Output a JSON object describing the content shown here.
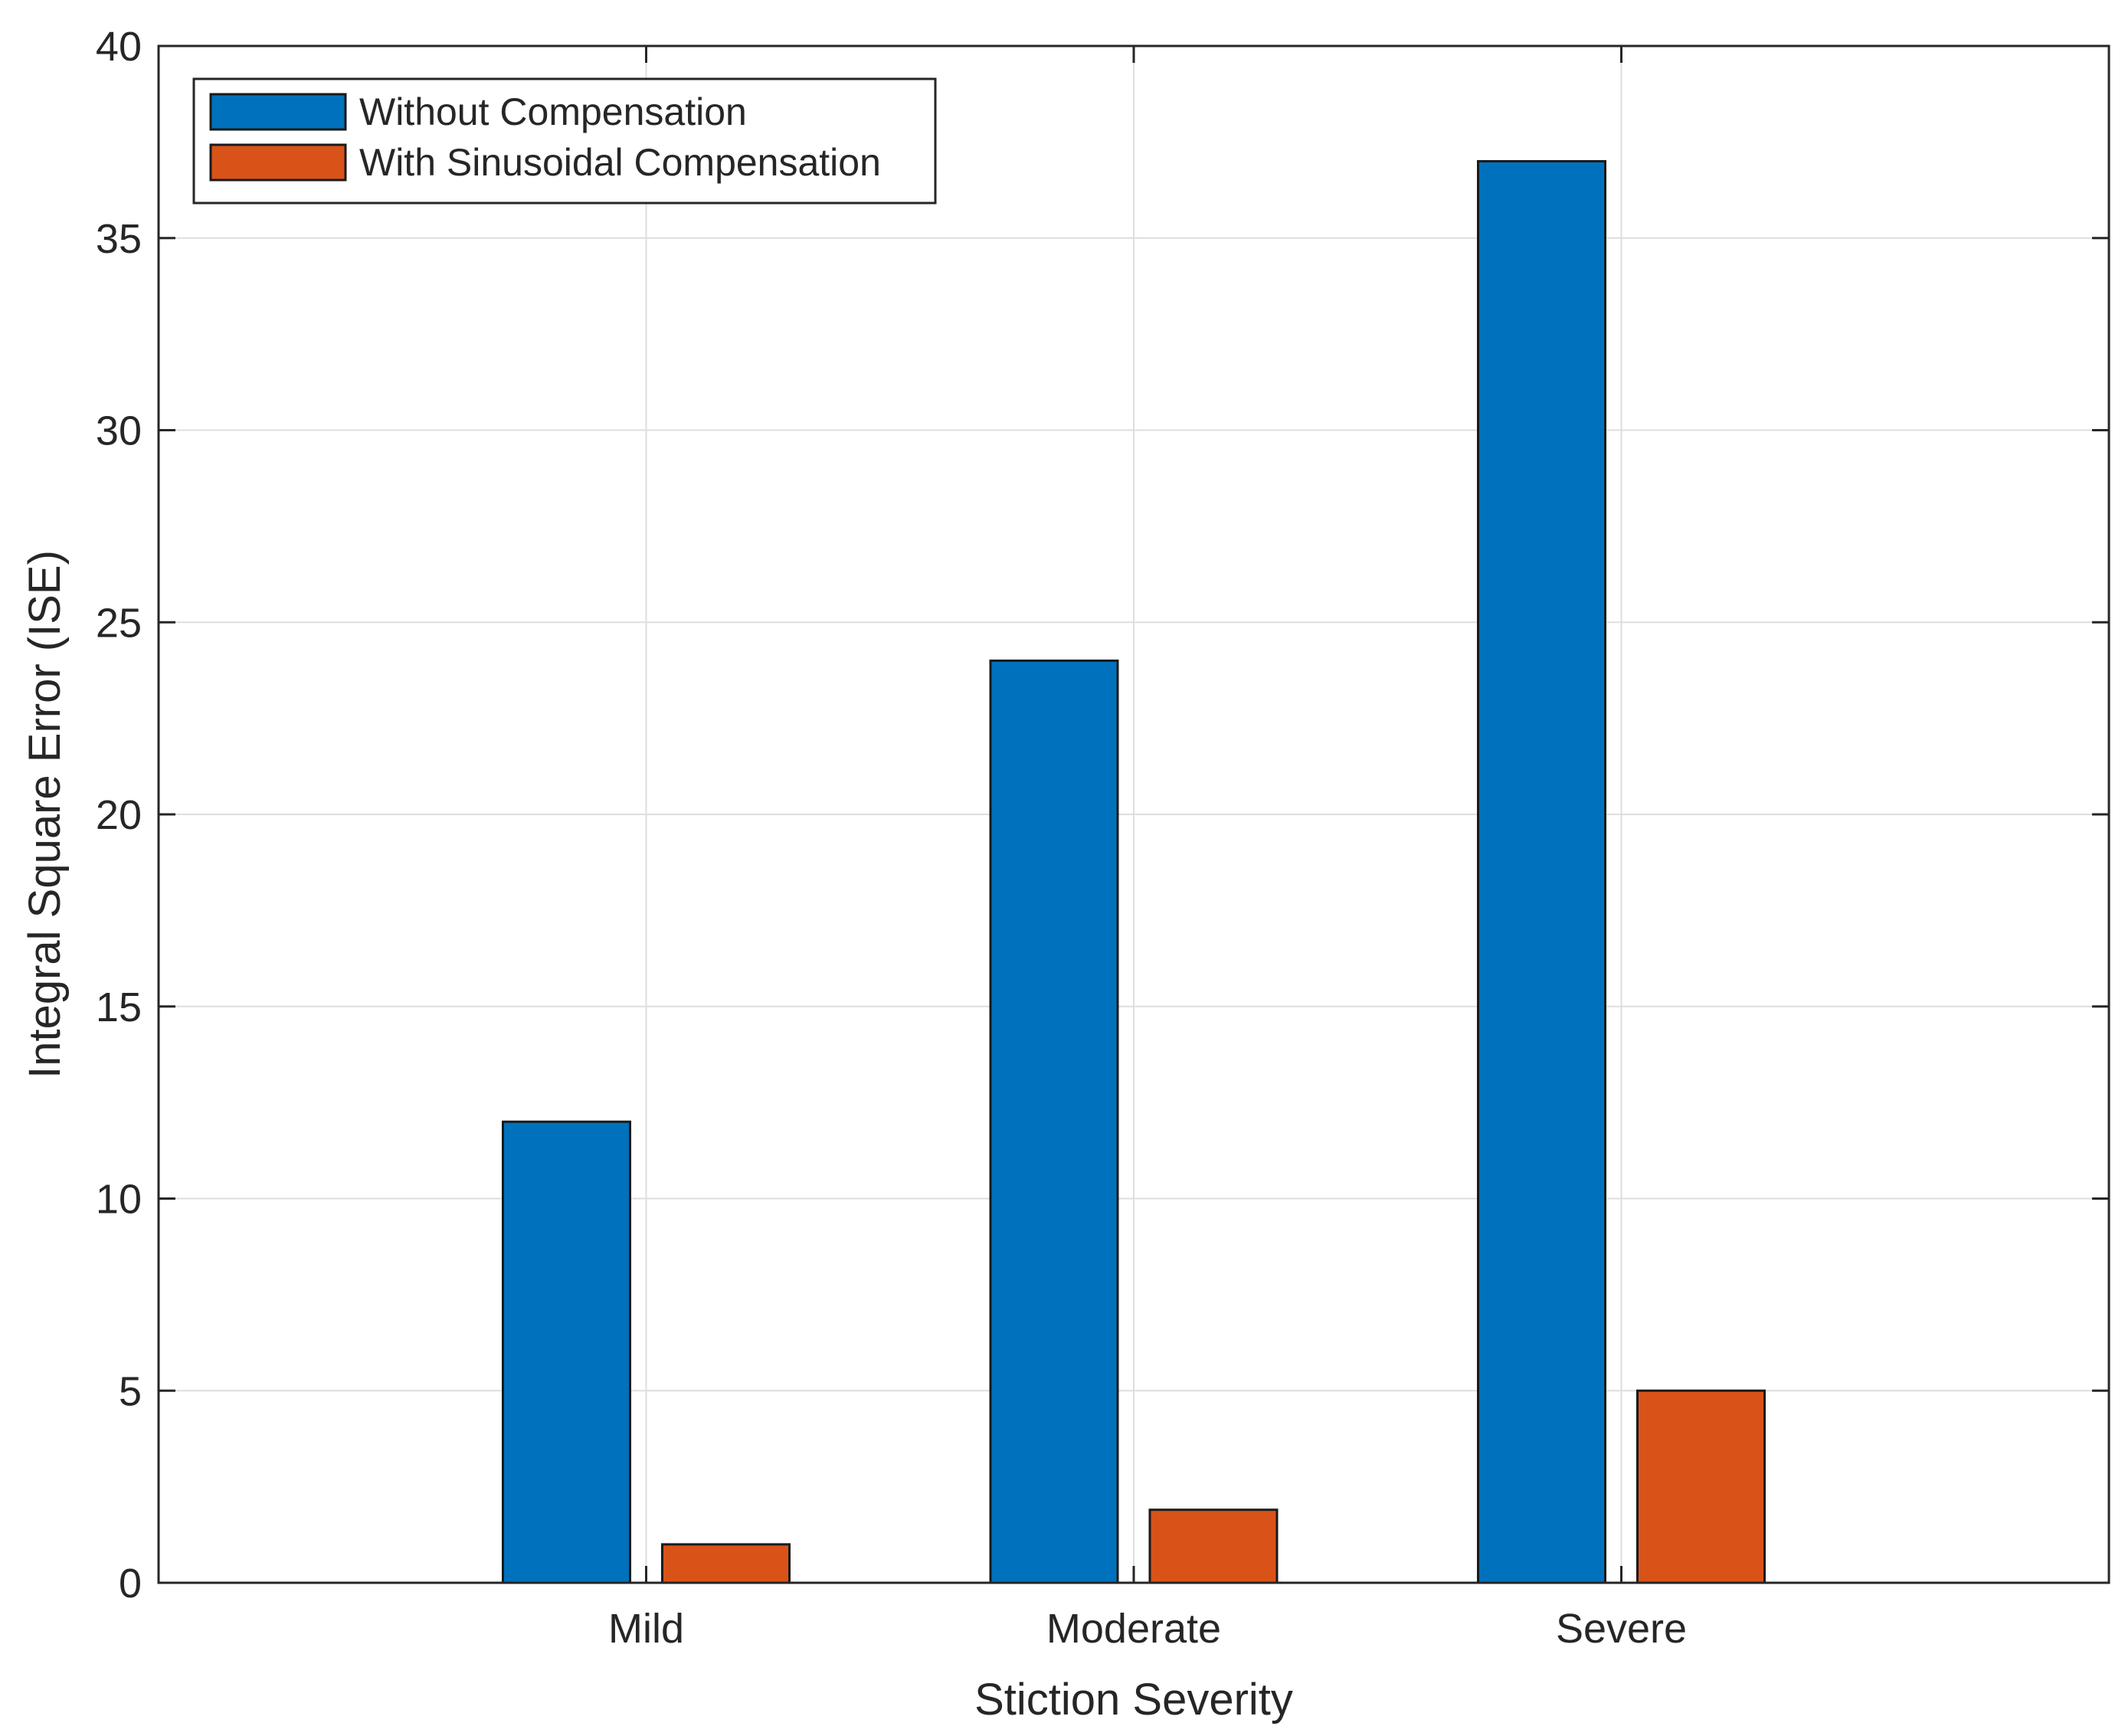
{
  "chart_data": {
    "type": "bar",
    "title": "",
    "xlabel": "Stiction Severity",
    "ylabel": "Integral Square Error (ISE)",
    "categories": [
      "Mild",
      "Moderate",
      "Severe"
    ],
    "ylim": [
      0,
      40
    ],
    "yticks": [
      0,
      5,
      10,
      15,
      20,
      25,
      30,
      35,
      40
    ],
    "grid": true,
    "legend_position": "top-left",
    "series": [
      {
        "name": "Without Compensation",
        "values": [
          12,
          24,
          37
        ],
        "color": "#0072BD"
      },
      {
        "name": "With Sinusoidal Compensation",
        "values": [
          1,
          1.9,
          5
        ],
        "color": "#D95319"
      }
    ]
  }
}
